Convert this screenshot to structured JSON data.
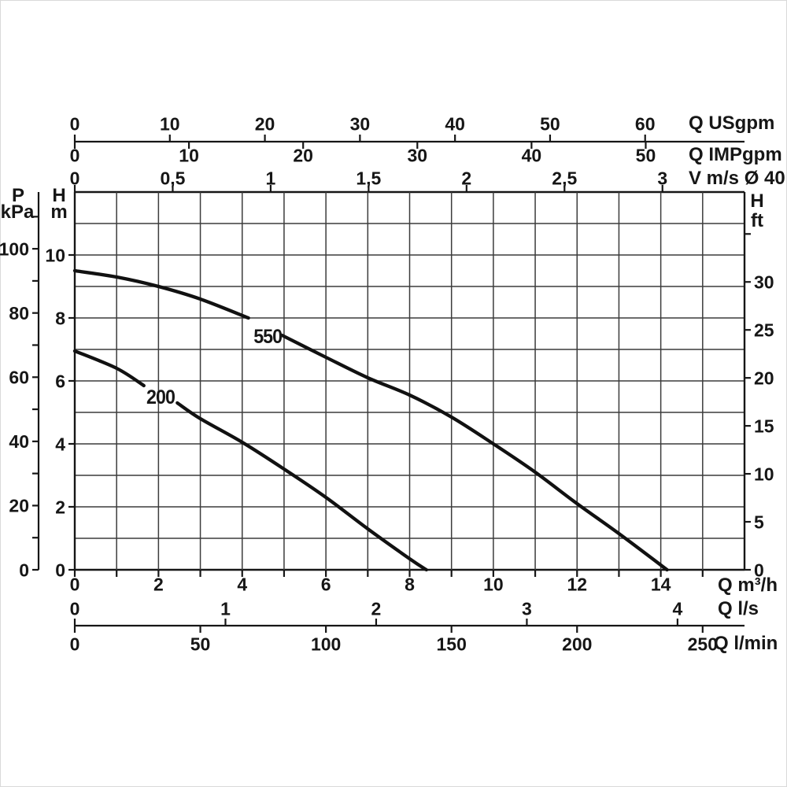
{
  "page": {
    "background": "#ffffff",
    "ink_color": "#161616",
    "grid_color": "#3c3c3c",
    "curve_color": "#111111"
  },
  "labels": {
    "p": "P",
    "kpa": "kPa",
    "h_left": "H",
    "m": "m",
    "h_right": "H",
    "ft": "ft",
    "q_usgpm": "Q USgpm",
    "q_impgpm": "Q IMPgpm",
    "v_ms": "V m/s Ø 40",
    "q_m3h": "Q m³/h",
    "q_ls": "Q l/s",
    "q_lmin": "Q l/min"
  },
  "chart_data": {
    "type": "line",
    "title": "Pump head vs flow performance curves, models 550 and 200",
    "grid": {
      "x_unit": "m3/h",
      "x_min": 0,
      "x_max": 16,
      "x_step": 1,
      "y_unit": "m",
      "y_min": 0,
      "y_max": 12,
      "y_step": 1
    },
    "x_axes": [
      {
        "id": "usgpm",
        "unit_label": "Q USgpm",
        "tick_labels": [
          "0",
          "10",
          "20",
          "30",
          "40",
          "50",
          "60"
        ],
        "tick_values": [
          0,
          10,
          20,
          30,
          40,
          50,
          60
        ],
        "m3h_per_unit": 0.2271,
        "row": "top-shared-line-above"
      },
      {
        "id": "impgpm",
        "unit_label": "Q IMPgpm",
        "tick_labels": [
          "0",
          "10",
          "20",
          "30",
          "40",
          "50"
        ],
        "tick_values": [
          0,
          10,
          20,
          30,
          40,
          50
        ],
        "m3h_per_unit": 0.2728,
        "row": "top-shared-line-below"
      },
      {
        "id": "vms",
        "unit_label": "V m/s Ø 40",
        "tick_labels": [
          "0",
          "0,5",
          "1",
          "1,5",
          "2",
          "2,5",
          "3"
        ],
        "tick_values": [
          0,
          0.5,
          1,
          1.5,
          2,
          2.5,
          3
        ],
        "m3h_per_unit": 4.68,
        "row": "grid-top-border"
      },
      {
        "id": "m3h",
        "unit_label": "Q m³/h",
        "tick_labels": [
          "0",
          "2",
          "4",
          "6",
          "8",
          "10",
          "12",
          "14"
        ],
        "tick_values": [
          0,
          2,
          4,
          6,
          8,
          10,
          12,
          14
        ],
        "m3h_per_unit": 1,
        "minor_tick_step": 1,
        "minor_tick_max": 15,
        "row": "grid-bottom-border"
      },
      {
        "id": "ls",
        "unit_label": "Q l/s",
        "tick_labels": [
          "0",
          "1",
          "2",
          "3",
          "4"
        ],
        "tick_values": [
          0,
          1,
          2,
          3,
          4
        ],
        "m3h_per_unit": 3.6,
        "row": "bottom-shared-line-above"
      },
      {
        "id": "lmin",
        "unit_label": "Q l/min",
        "tick_labels": [
          "0",
          "50",
          "100",
          "150",
          "200",
          "250"
        ],
        "tick_values": [
          0,
          50,
          100,
          150,
          200,
          250
        ],
        "m3h_per_unit": 0.06,
        "row": "bottom-shared-line-below"
      }
    ],
    "y_axes": [
      {
        "id": "kpa",
        "header": [
          "P",
          "kPa"
        ],
        "tick_labels": [
          "0",
          "20",
          "40",
          "60",
          "80",
          "100"
        ],
        "tick_values": [
          0,
          20,
          40,
          60,
          80,
          100
        ],
        "minor_tick_step": 10,
        "minor_tick_max": 110,
        "m_per_unit": 0.10197,
        "side": "far-left-line"
      },
      {
        "id": "m",
        "header": [
          "H",
          "m"
        ],
        "tick_labels": [
          "0",
          "2",
          "4",
          "6",
          "8",
          "10"
        ],
        "tick_values": [
          0,
          2,
          4,
          6,
          8,
          10
        ],
        "m_per_unit": 1,
        "side": "grid-left-border"
      },
      {
        "id": "ft",
        "header": [
          "H",
          "ft"
        ],
        "tick_labels": [
          "0",
          "5",
          "10",
          "15",
          "20",
          "25",
          "30"
        ],
        "tick_values": [
          0,
          5,
          10,
          15,
          20,
          25,
          30
        ],
        "minor_tick_step": 5,
        "minor_tick_max": 35,
        "m_per_unit": 0.3048,
        "side": "grid-right-border"
      }
    ],
    "series": [
      {
        "name": "550",
        "label": "550",
        "label_at": {
          "q_m3h": 4.61,
          "h_m": 7.43
        },
        "segments_q_m3h_h_m": [
          [
            [
              0,
              9.5
            ],
            [
              1,
              9.3
            ],
            [
              2,
              9.0
            ],
            [
              3,
              8.6
            ],
            [
              4.15,
              8.0
            ]
          ],
          [
            [
              4.95,
              7.45
            ],
            [
              6,
              6.75
            ],
            [
              7,
              6.1
            ],
            [
              8,
              5.55
            ],
            [
              9,
              4.85
            ],
            [
              10,
              4.0
            ],
            [
              11,
              3.1
            ],
            [
              12,
              2.1
            ],
            [
              13,
              1.15
            ],
            [
              14.15,
              0
            ]
          ]
        ]
      },
      {
        "name": "200",
        "label": "200",
        "label_at": {
          "q_m3h": 2.05,
          "h_m": 5.5
        },
        "segments_q_m3h_h_m": [
          [
            [
              0,
              6.95
            ],
            [
              1,
              6.4
            ],
            [
              1.65,
              5.85
            ]
          ],
          [
            [
              2.45,
              5.3
            ],
            [
              3,
              4.8
            ],
            [
              4,
              4.05
            ],
            [
              5,
              3.2
            ],
            [
              6,
              2.3
            ],
            [
              7,
              1.3
            ],
            [
              8,
              0.35
            ],
            [
              8.4,
              0
            ]
          ]
        ]
      }
    ]
  }
}
